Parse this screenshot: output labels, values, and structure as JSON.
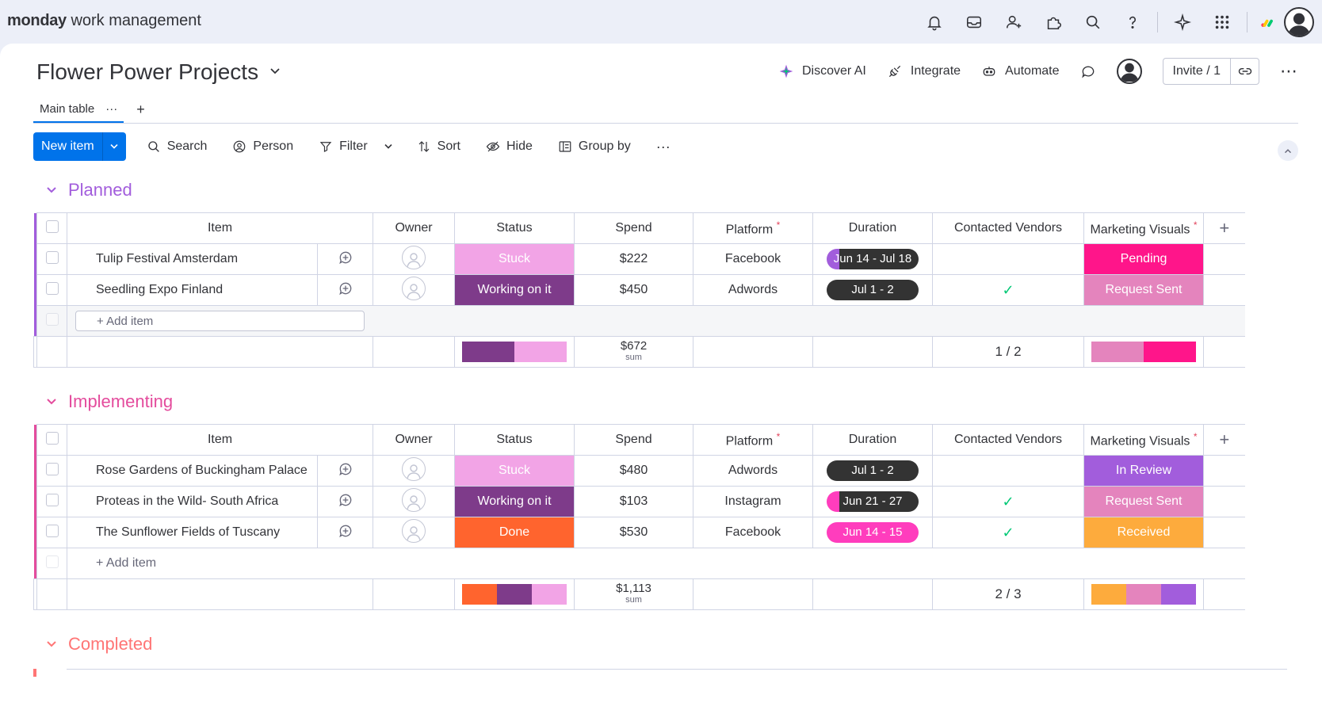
{
  "app": {
    "brand_bold": "monday",
    "brand_rest": " work management"
  },
  "header": {
    "board_title": "Flower Power Projects",
    "discover_ai": "Discover AI",
    "integrate": "Integrate",
    "automate": "Automate",
    "invite": "Invite / 1"
  },
  "tabs": {
    "main_table": "Main table",
    "more": "···",
    "add": "+"
  },
  "toolbar": {
    "new_item": "New item",
    "search": "Search",
    "person": "Person",
    "filter": "Filter",
    "sort": "Sort",
    "hide": "Hide",
    "group_by": "Group by",
    "more": "···"
  },
  "columns": {
    "item": "Item",
    "owner": "Owner",
    "status": "Status",
    "spend": "Spend",
    "platform": "Platform",
    "duration": "Duration",
    "contacted": "Contacted Vendors",
    "visuals": "Marketing Visuals",
    "add": "+"
  },
  "colors": {
    "planned": "#a25ddc",
    "implementing": "#e44c9d",
    "completed": "#ff7575",
    "stuck": "#f2a4e6",
    "working": "#7e3b8a",
    "done": "#ff642e",
    "pending": "#ff158a",
    "request_sent": "#e484bd",
    "in_review": "#a25ddc",
    "received": "#fdab3d",
    "pill_dark": "#333333",
    "pill_pink": "#ff3dbd"
  },
  "groups": {
    "planned": {
      "title": "Planned",
      "rows": [
        {
          "item": "Tulip Festival Amsterdam",
          "status": "Stuck",
          "spend": "$222",
          "platform": "Facebook",
          "duration": "Jun 14 - Jul 18",
          "contacted": "",
          "visuals": "Pending"
        },
        {
          "item": "Seedling Expo Finland",
          "status": "Working on it",
          "spend": "$450",
          "platform": "Adwords",
          "duration": "Jul 1 - 2",
          "contacted": "✓",
          "visuals": "Request Sent"
        }
      ],
      "add_item": "+ Add item",
      "sum": "$672",
      "sum_label": "sum",
      "contacted_summary": "1 / 2"
    },
    "implementing": {
      "title": "Implementing",
      "rows": [
        {
          "item": "Rose Gardens of Buckingham Palace",
          "status": "Stuck",
          "spend": "$480",
          "platform": "Adwords",
          "duration": "Jul 1 - 2",
          "contacted": "",
          "visuals": "In Review"
        },
        {
          "item": "Proteas in the Wild- South Africa",
          "status": "Working on it",
          "spend": "$103",
          "platform": "Instagram",
          "duration": "Jun 21 - 27",
          "contacted": "✓",
          "visuals": "Request Sent"
        },
        {
          "item": "The Sunflower Fields of Tuscany",
          "status": "Done",
          "spend": "$530",
          "platform": "Facebook",
          "duration": "Jun 14 - 15",
          "contacted": "✓",
          "visuals": "Received"
        }
      ],
      "add_item": "+ Add item",
      "sum": "$1,113",
      "sum_label": "sum",
      "contacted_summary": "2 / 3"
    },
    "completed": {
      "title": "Completed"
    }
  },
  "icons": [
    "bell-icon",
    "inbox-icon",
    "invite-members-icon",
    "apps-icon",
    "search-icon",
    "help-icon",
    "ai-sparkle-icon",
    "grid-menu-icon",
    "monday-logo-icon",
    "user-avatar-icon"
  ]
}
